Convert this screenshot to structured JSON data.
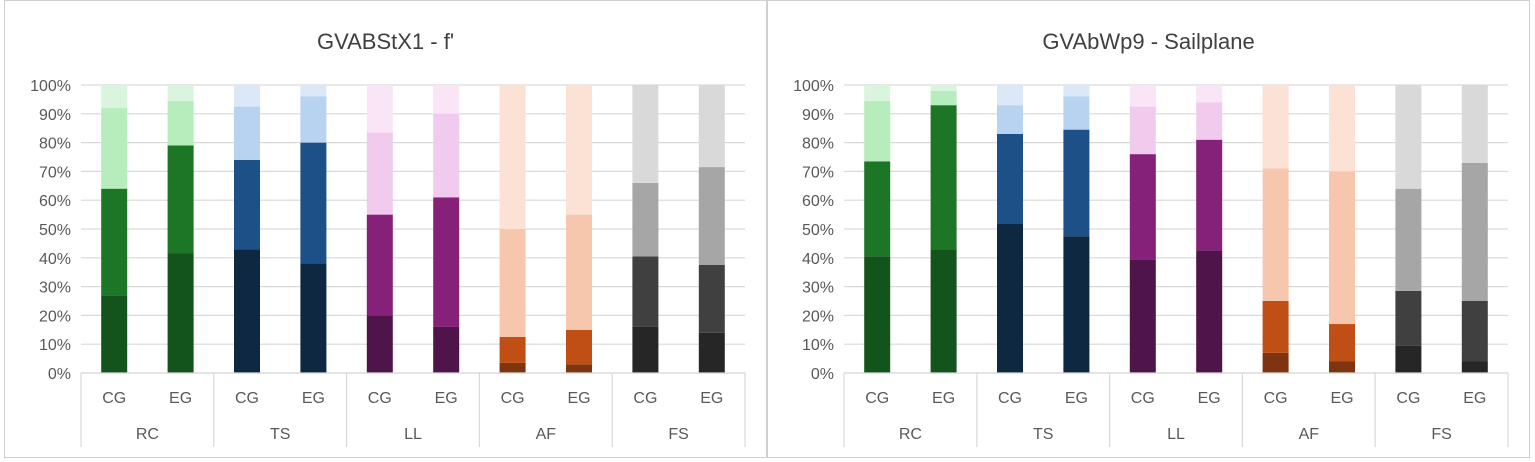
{
  "chart_data": [
    {
      "type": "bar",
      "stacked": "percent",
      "title": "GVABStX1 - f'",
      "groups": [
        "RC",
        "TS",
        "LL",
        "AF",
        "FS"
      ],
      "subcategories": [
        "CG",
        "EG"
      ],
      "ylim": [
        0,
        100
      ],
      "yticks": [
        "0%",
        "10%",
        "20%",
        "30%",
        "40%",
        "50%",
        "60%",
        "70%",
        "80%",
        "90%",
        "100%"
      ],
      "grid": true,
      "series_note": "4 stacked segments per bar, darkest at bottom",
      "bars": [
        {
          "group": "RC",
          "sub": "CG",
          "values": [
            27,
            37,
            28,
            8
          ]
        },
        {
          "group": "RC",
          "sub": "EG",
          "values": [
            41.5,
            37.5,
            15.5,
            5.5
          ]
        },
        {
          "group": "TS",
          "sub": "CG",
          "values": [
            43,
            31,
            18.5,
            7.5
          ]
        },
        {
          "group": "TS",
          "sub": "EG",
          "values": [
            38,
            42,
            16,
            4
          ]
        },
        {
          "group": "LL",
          "sub": "CG",
          "values": [
            20,
            35,
            28.5,
            16.5
          ]
        },
        {
          "group": "LL",
          "sub": "EG",
          "values": [
            16,
            45,
            29,
            10
          ]
        },
        {
          "group": "AF",
          "sub": "CG",
          "values": [
            3.5,
            9,
            37.5,
            50
          ]
        },
        {
          "group": "AF",
          "sub": "EG",
          "values": [
            3,
            12,
            40,
            45
          ]
        },
        {
          "group": "FS",
          "sub": "CG",
          "values": [
            16,
            24.5,
            25.5,
            34
          ]
        },
        {
          "group": "FS",
          "sub": "EG",
          "values": [
            14,
            23.5,
            34,
            28.5
          ]
        }
      ]
    },
    {
      "type": "bar",
      "stacked": "percent",
      "title": "GVAbWp9 - Sailplane",
      "groups": [
        "RC",
        "TS",
        "LL",
        "AF",
        "FS"
      ],
      "subcategories": [
        "CG",
        "EG"
      ],
      "ylim": [
        0,
        100
      ],
      "yticks": [
        "0%",
        "10%",
        "20%",
        "30%",
        "40%",
        "50%",
        "60%",
        "70%",
        "80%",
        "90%",
        "100%"
      ],
      "grid": true,
      "series_note": "4 stacked segments per bar, darkest at bottom",
      "bars": [
        {
          "group": "RC",
          "sub": "CG",
          "values": [
            40.5,
            33,
            21,
            5.5
          ]
        },
        {
          "group": "RC",
          "sub": "EG",
          "values": [
            43,
            50,
            5,
            2
          ]
        },
        {
          "group": "TS",
          "sub": "CG",
          "values": [
            52,
            31,
            10,
            7
          ]
        },
        {
          "group": "TS",
          "sub": "EG",
          "values": [
            47.5,
            37,
            11.5,
            4
          ]
        },
        {
          "group": "LL",
          "sub": "CG",
          "values": [
            39.5,
            36.5,
            16.5,
            7.5
          ]
        },
        {
          "group": "LL",
          "sub": "EG",
          "values": [
            42.5,
            38.5,
            13,
            6
          ]
        },
        {
          "group": "AF",
          "sub": "CG",
          "values": [
            7,
            18,
            46,
            29
          ]
        },
        {
          "group": "AF",
          "sub": "EG",
          "values": [
            4,
            13,
            53,
            30
          ]
        },
        {
          "group": "FS",
          "sub": "CG",
          "values": [
            9.5,
            19,
            35.5,
            36
          ]
        },
        {
          "group": "FS",
          "sub": "EG",
          "values": [
            4,
            21,
            48,
            27
          ]
        }
      ]
    }
  ],
  "colors": {
    "RC": [
      "#13531c",
      "#1d7626",
      "#b7edbd",
      "#daf5dd"
    ],
    "TS": [
      "#0e2841",
      "#1d5086",
      "#b7d3f0",
      "#dae8f7"
    ],
    "LL": [
      "#4f1449",
      "#852178",
      "#f1cbed",
      "#f9e5f6"
    ],
    "AF": [
      "#7e340e",
      "#c04f15",
      "#f6c6ad",
      "#fbe2d5"
    ],
    "FS": [
      "#262626",
      "#404040",
      "#a6a6a6",
      "#d9d9d9"
    ]
  }
}
